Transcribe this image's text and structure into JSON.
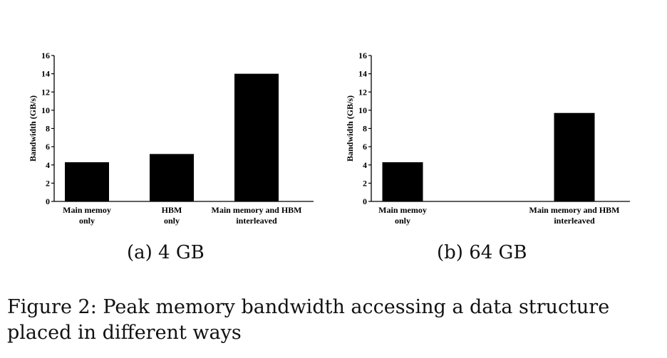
{
  "chart_data": [
    {
      "type": "bar",
      "categories": [
        [
          "Main memoy",
          "only"
        ],
        [
          "HBM",
          "only"
        ],
        [
          "Main memory and HBM",
          "interleaved"
        ]
      ],
      "values": [
        4.3,
        5.2,
        14.0
      ],
      "ylabel": "Bandwidth (GB/s)",
      "ylim": [
        0,
        16
      ],
      "yticks": [
        0,
        2,
        4,
        6,
        8,
        10,
        12,
        14,
        16
      ],
      "bar_color": "#000000",
      "grid": false,
      "legend": "none",
      "caption": "(a) 4 GB"
    },
    {
      "type": "bar",
      "categories": [
        [
          "Main memoy",
          "only"
        ],
        [
          "",
          ""
        ],
        [
          "Main memory and HBM",
          "interleaved"
        ]
      ],
      "values": [
        4.3,
        null,
        9.7
      ],
      "ylabel": "Bandwidth (GB/s)",
      "ylim": [
        0,
        16
      ],
      "yticks": [
        0,
        2,
        4,
        6,
        8,
        10,
        12,
        14,
        16
      ],
      "bar_color": "#000000",
      "grid": false,
      "legend": "none",
      "caption": "(b) 64 GB"
    }
  ],
  "figure_caption": "Figure 2: Peak memory bandwidth accessing a data structure placed in different ways"
}
